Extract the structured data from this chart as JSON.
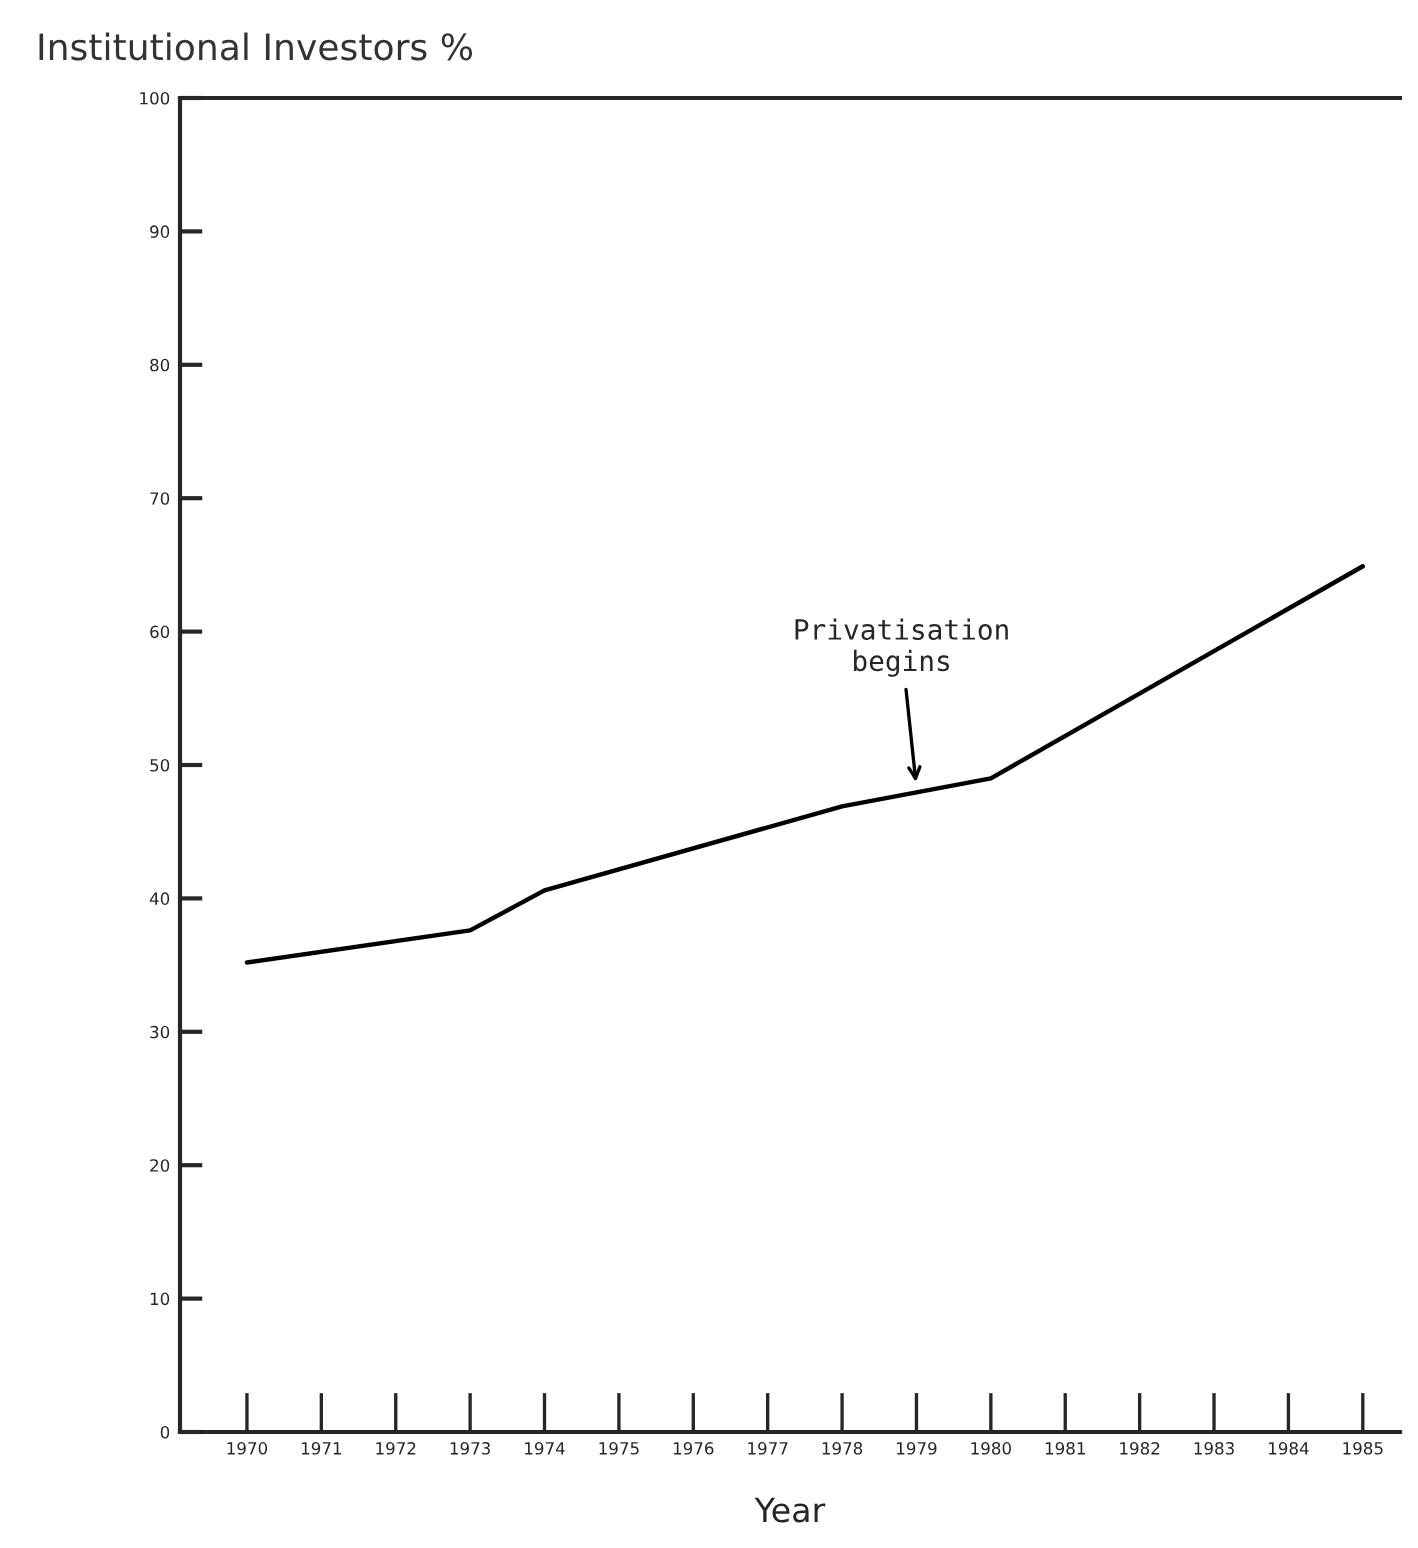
{
  "chart_data": {
    "type": "line",
    "title": "Institutional Investors %",
    "xlabel": "Year",
    "x": [
      1970,
      1973,
      1974,
      1978,
      1980,
      1985
    ],
    "series": [
      {
        "color": "#000000",
        "values": [
          35.2,
          37.6,
          40.6,
          46.9,
          49,
          64.9
        ]
      }
    ],
    "xlim": [
      1969.1,
      1985.5
    ],
    "xticks": [
      1970,
      1971,
      1972,
      1973,
      1974,
      1975,
      1976,
      1977,
      1978,
      1979,
      1980,
      1981,
      1982,
      1983,
      1984,
      1985
    ],
    "ylim": [
      0,
      100
    ],
    "yticks": [
      0,
      10,
      20,
      30,
      40,
      50,
      60,
      70,
      80,
      90,
      100
    ],
    "annotations": [
      {
        "text": "Privatisation\nbegins",
        "x": 1979,
        "y": 48.3
      }
    ],
    "grid": false,
    "legend": false,
    "marker": "none",
    "line_style": "solid"
  }
}
